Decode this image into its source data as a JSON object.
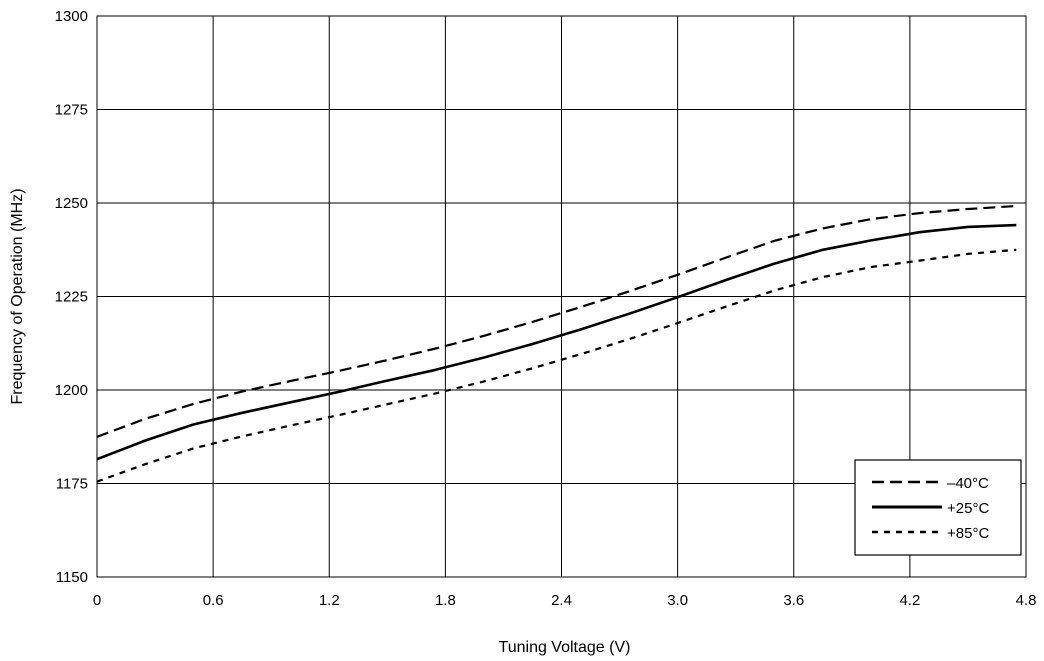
{
  "chart_data": {
    "type": "line",
    "title": "",
    "xlabel": "Tuning Voltage (V)",
    "ylabel": "Frequency of Operation (MHz)",
    "xlim": [
      0,
      4.8
    ],
    "ylim": [
      1150,
      1300
    ],
    "x_ticks": [
      "0",
      "0.6",
      "1.2",
      "1.8",
      "2.4",
      "3.0",
      "3.6",
      "4.2",
      "4.8"
    ],
    "y_ticks": [
      "1150",
      "1175",
      "1200",
      "1225",
      "1250",
      "1275",
      "1300"
    ],
    "grid": true,
    "legend_position": "bottom-right",
    "series": [
      {
        "name": "–40°C",
        "style": "dashed",
        "color": "#000000",
        "x": [
          0,
          0.25,
          0.5,
          0.75,
          1.0,
          1.25,
          1.5,
          1.75,
          2.0,
          2.25,
          2.5,
          2.75,
          3.0,
          3.25,
          3.5,
          3.75,
          4.0,
          4.25,
          4.5,
          4.75
        ],
        "y": [
          1187.5,
          1192.3,
          1196.3,
          1199.6,
          1202.4,
          1205.1,
          1208.0,
          1211.1,
          1214.5,
          1218.2,
          1222.2,
          1226.4,
          1230.8,
          1235.4,
          1239.9,
          1243.2,
          1245.7,
          1247.3,
          1248.4,
          1249.2
        ]
      },
      {
        "name": "+25°C",
        "style": "solid",
        "color": "#000000",
        "x": [
          0,
          0.25,
          0.5,
          0.75,
          1.0,
          1.25,
          1.5,
          1.75,
          2.0,
          2.25,
          2.5,
          2.75,
          3.0,
          3.25,
          3.5,
          3.75,
          4.0,
          4.25,
          4.5,
          4.75
        ],
        "y": [
          1181.5,
          1186.5,
          1190.8,
          1193.9,
          1196.7,
          1199.5,
          1202.5,
          1205.4,
          1208.7,
          1212.3,
          1216.2,
          1220.4,
          1224.8,
          1229.4,
          1233.8,
          1237.5,
          1240.0,
          1242.2,
          1243.6,
          1244.1
        ]
      },
      {
        "name": "+85°C",
        "style": "dotted",
        "color": "#000000",
        "x": [
          0,
          0.25,
          0.5,
          0.75,
          1.0,
          1.25,
          1.5,
          1.75,
          2.0,
          2.25,
          2.5,
          2.75,
          3.0,
          3.25,
          3.5,
          3.75,
          4.0,
          4.25,
          4.5,
          4.75
        ],
        "y": [
          1175.5,
          1180.2,
          1184.4,
          1187.6,
          1190.5,
          1193.3,
          1196.2,
          1199.1,
          1202.3,
          1205.8,
          1209.6,
          1213.6,
          1217.9,
          1222.3,
          1226.6,
          1230.2,
          1232.9,
          1234.6,
          1236.4,
          1237.5
        ]
      }
    ]
  }
}
